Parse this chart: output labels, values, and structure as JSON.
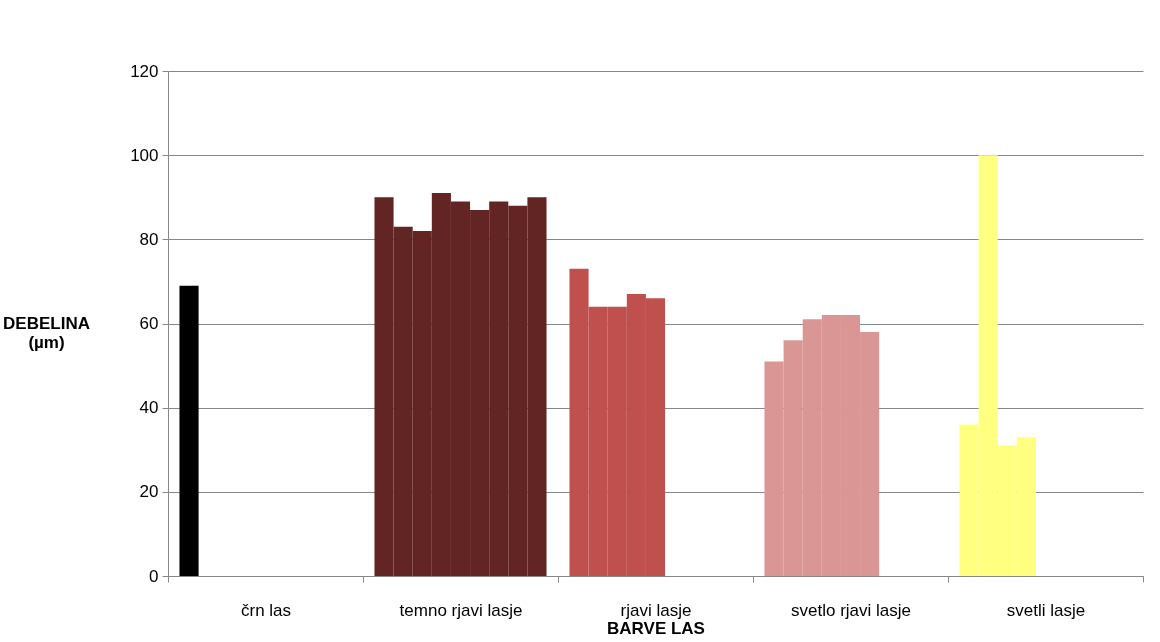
{
  "chart_data": {
    "type": "bar",
    "xlabel": "BARVE LAS",
    "ylabel": "DEBELINA (µm)",
    "categories": [
      "črn las",
      "temno rjavi lasje",
      "rjavi lasje",
      "svetlo rjavi lasje",
      "svetli lasje"
    ],
    "series": [
      {
        "colors": [
          "#000000",
          "#632523",
          "#c0504d",
          "#d99694",
          "#ffff80"
        ],
        "values": [
          69,
          90,
          73,
          51,
          36
        ]
      },
      {
        "colors": [
          null,
          "#632523",
          "#c0504d",
          "#d99694",
          "#ffff80"
        ],
        "values": [
          null,
          83,
          64,
          56,
          100
        ]
      },
      {
        "colors": [
          null,
          "#632523",
          "#c0504d",
          "#d99694",
          "#ffff80"
        ],
        "values": [
          null,
          82,
          64,
          61,
          31
        ]
      },
      {
        "colors": [
          null,
          "#632523",
          "#c0504d",
          "#d99694",
          "#ffff80"
        ],
        "values": [
          null,
          91,
          67,
          62,
          33
        ]
      },
      {
        "colors": [
          null,
          "#632523",
          "#c0504d",
          "#d99694",
          null
        ],
        "values": [
          null,
          89,
          66,
          62,
          null
        ]
      },
      {
        "colors": [
          null,
          "#632523",
          null,
          "#d99694",
          null
        ],
        "values": [
          null,
          87,
          null,
          58,
          null
        ]
      },
      {
        "colors": [
          null,
          "#632523",
          null,
          null,
          null
        ],
        "values": [
          null,
          89,
          null,
          null,
          null
        ]
      },
      {
        "colors": [
          null,
          "#632523",
          null,
          null,
          null
        ],
        "values": [
          null,
          88,
          null,
          null,
          null
        ]
      },
      {
        "colors": [
          null,
          "#632523",
          null,
          null,
          null
        ],
        "values": [
          null,
          90,
          null,
          null,
          null
        ]
      }
    ],
    "ylim": [
      0,
      120
    ],
    "yticks": [
      0,
      20,
      40,
      60,
      80,
      100,
      120
    ],
    "grid": "y"
  }
}
